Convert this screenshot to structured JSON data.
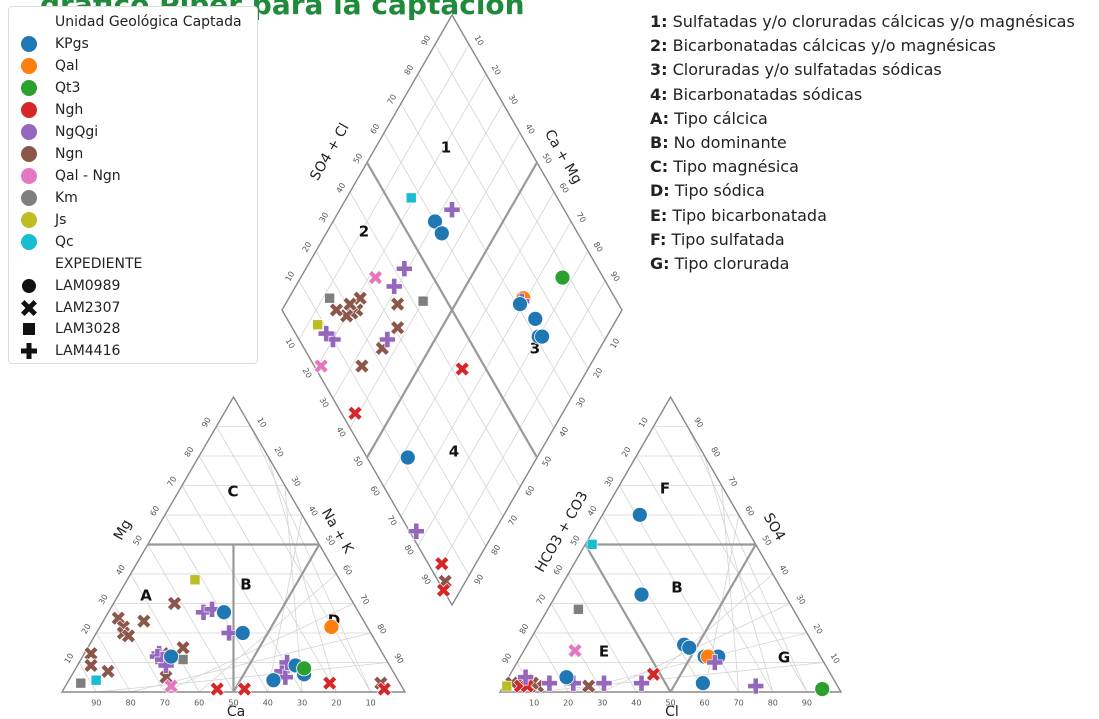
{
  "title_fragment": "gráfico Piper para la captación",
  "legend": {
    "unit_title": "Unidad Geológica Captada",
    "units": [
      {
        "label": "KPgs",
        "color": "#1f77b4"
      },
      {
        "label": "Qal",
        "color": "#ff7f0e"
      },
      {
        "label": "Qt3",
        "color": "#2ca02c"
      },
      {
        "label": "Ngh",
        "color": "#d62728"
      },
      {
        "label": "NgQgi",
        "color": "#9467bd"
      },
      {
        "label": "Ngn",
        "color": "#8c564b"
      },
      {
        "label": "Qal - Ngn",
        "color": "#e377c2"
      },
      {
        "label": "Km",
        "color": "#7f7f7f"
      },
      {
        "label": "Js",
        "color": "#bcbd22"
      },
      {
        "label": "Qc",
        "color": "#17becf"
      }
    ],
    "exp_title": "EXPEDIENTE",
    "expedientes": [
      {
        "label": "LAM0989",
        "marker": "circle"
      },
      {
        "label": "LAM2307",
        "marker": "x"
      },
      {
        "label": "LAM3028",
        "marker": "square"
      },
      {
        "label": "LAM4416",
        "marker": "plus"
      }
    ]
  },
  "key": [
    {
      "code": "1:",
      "text": "Sulfatadas y/o cloruradas cálcicas y/o magnésicas"
    },
    {
      "code": "2:",
      "text": "Bicarbonatadas cálcicas y/o magnésicas"
    },
    {
      "code": "3:",
      "text": "Cloruradas y/o sulfatadas sódicas"
    },
    {
      "code": "4:",
      "text": "Bicarbonatadas sódicas"
    },
    {
      "code": "A:",
      "text": "Tipo cálcica"
    },
    {
      "code": "B:",
      "text": "No dominante"
    },
    {
      "code": "C:",
      "text": "Tipo magnésica"
    },
    {
      "code": "D:",
      "text": "Tipo sódica"
    },
    {
      "code": "E:",
      "text": "Tipo bicarbonatada"
    },
    {
      "code": "F:",
      "text": "Tipo sulfatada"
    },
    {
      "code": "G:",
      "text": "Tipo clorurada"
    }
  ],
  "chart_data": [
    {
      "type": "scatter",
      "name": "cation-triangle",
      "axis_labels": [
        "Mg",
        "Na + K",
        "Ca"
      ],
      "tick_labels": [
        "10",
        "20",
        "30",
        "40",
        "50",
        "60",
        "70",
        "80",
        "90"
      ],
      "region_labels": [
        "A",
        "B",
        "C",
        "D"
      ],
      "points": [
        {
          "unit": "Km",
          "marker": "square",
          "a": 3,
          "b": 4
        },
        {
          "unit": "Qc",
          "marker": "square",
          "a": 4,
          "b": 8
        },
        {
          "unit": "Ngn",
          "marker": "x",
          "a": 13,
          "b": 2
        },
        {
          "unit": "Ngn",
          "marker": "x",
          "a": 9,
          "b": 4
        },
        {
          "unit": "Ngn",
          "marker": "x",
          "a": 7,
          "b": 10
        },
        {
          "unit": "Ngn",
          "marker": "x",
          "a": 25,
          "b": 4
        },
        {
          "unit": "Ngn",
          "marker": "x",
          "a": 22,
          "b": 7
        },
        {
          "unit": "Ngn",
          "marker": "x",
          "a": 20,
          "b": 8
        },
        {
          "unit": "Ngn",
          "marker": "x",
          "a": 19,
          "b": 10
        },
        {
          "unit": "Ngn",
          "marker": "x",
          "a": 24,
          "b": 12
        },
        {
          "unit": "Ngn",
          "marker": "x",
          "a": 13,
          "b": 23
        },
        {
          "unit": "Ngn",
          "marker": "x",
          "a": 30,
          "b": 18
        },
        {
          "unit": "Ngn",
          "marker": "x",
          "a": 15,
          "b": 28
        },
        {
          "unit": "Ngn",
          "marker": "x",
          "a": 5,
          "b": 28
        },
        {
          "unit": "Ngn",
          "marker": "x",
          "a": 3,
          "b": 92
        },
        {
          "unit": "Js",
          "marker": "square",
          "a": 38,
          "b": 20
        },
        {
          "unit": "NgQgi",
          "marker": "plus",
          "a": 13,
          "b": 22
        },
        {
          "unit": "NgQgi",
          "marker": "plus",
          "a": 12,
          "b": 22
        },
        {
          "unit": "NgQgi",
          "marker": "plus",
          "a": 11,
          "b": 24
        },
        {
          "unit": "NgQgi",
          "marker": "plus",
          "a": 9,
          "b": 26
        },
        {
          "unit": "NgQgi",
          "marker": "plus",
          "a": 27,
          "b": 28
        },
        {
          "unit": "NgQgi",
          "marker": "plus",
          "a": 28,
          "b": 30
        },
        {
          "unit": "NgQgi",
          "marker": "plus",
          "a": 20,
          "b": 39
        },
        {
          "unit": "NgQgi",
          "marker": "plus",
          "a": 7,
          "b": 61
        },
        {
          "unit": "NgQgi",
          "marker": "plus",
          "a": 5,
          "b": 63
        },
        {
          "unit": "NgQgi",
          "marker": "plus",
          "a": 10,
          "b": 61
        },
        {
          "unit": "Km",
          "marker": "square",
          "a": 11,
          "b": 30
        },
        {
          "unit": "KPgs",
          "marker": "circle",
          "a": 12,
          "b": 26
        },
        {
          "unit": "KPgs",
          "marker": "circle",
          "a": 27,
          "b": 34
        },
        {
          "unit": "KPgs",
          "marker": "circle",
          "a": 20,
          "b": 43
        },
        {
          "unit": "KPgs",
          "marker": "circle",
          "a": 9,
          "b": 64
        },
        {
          "unit": "KPgs",
          "marker": "circle",
          "a": 6,
          "b": 68
        },
        {
          "unit": "KPgs",
          "marker": "circle",
          "a": 4,
          "b": 60
        },
        {
          "unit": "Qal",
          "marker": "circle",
          "a": 22,
          "b": 68
        },
        {
          "unit": "Qt3",
          "marker": "circle",
          "a": 8,
          "b": 67
        },
        {
          "unit": "Ngh",
          "marker": "x",
          "a": 3,
          "b": 77
        },
        {
          "unit": "Ngh",
          "marker": "x",
          "a": 1,
          "b": 45
        },
        {
          "unit": "Ngh",
          "marker": "x",
          "a": 1,
          "b": 53
        },
        {
          "unit": "Ngh",
          "marker": "x",
          "a": 1,
          "b": 94
        },
        {
          "unit": "Qal - Ngn",
          "marker": "x",
          "a": 2,
          "b": 31
        }
      ]
    },
    {
      "type": "scatter",
      "name": "anion-triangle",
      "axis_labels": [
        "HCO3 + CO3",
        "SO4",
        "Cl"
      ],
      "tick_labels": [
        "10",
        "20",
        "30",
        "40",
        "50",
        "60",
        "70",
        "80",
        "90"
      ],
      "region_labels": [
        "E",
        "F",
        "G",
        "B"
      ],
      "points": [
        {
          "unit": "Qc",
          "marker": "square",
          "a": 50,
          "b": 2
        },
        {
          "unit": "KPgs",
          "marker": "circle",
          "a": 60,
          "b": 11
        },
        {
          "unit": "KPgs",
          "marker": "circle",
          "a": 33,
          "b": 25
        },
        {
          "unit": "Km",
          "marker": "square",
          "a": 28,
          "b": 9
        },
        {
          "unit": "KPgs",
          "marker": "circle",
          "a": 16,
          "b": 46
        },
        {
          "unit": "KPgs",
          "marker": "circle",
          "a": 15,
          "b": 48
        },
        {
          "unit": "KPgs",
          "marker": "circle",
          "a": 12,
          "b": 54
        },
        {
          "unit": "KPgs",
          "marker": "circle",
          "a": 12,
          "b": 58
        },
        {
          "unit": "KPgs",
          "marker": "circle",
          "a": 3,
          "b": 58
        },
        {
          "unit": "Qal",
          "marker": "circle",
          "a": 12,
          "b": 55
        },
        {
          "unit": "Qt3",
          "marker": "circle",
          "a": 1,
          "b": 94
        },
        {
          "unit": "NgQgi",
          "marker": "plus",
          "a": 10,
          "b": 58
        },
        {
          "unit": "NgQgi",
          "marker": "plus",
          "a": 2,
          "b": 74
        },
        {
          "unit": "Qal - Ngn",
          "marker": "x",
          "a": 14,
          "b": 15
        },
        {
          "unit": "Ngh",
          "marker": "x",
          "a": 6,
          "b": 42
        },
        {
          "unit": "Ngn",
          "marker": "x",
          "a": 2,
          "b": 25
        },
        {
          "unit": "Ngn",
          "marker": "x",
          "a": 2,
          "b": 10
        },
        {
          "unit": "NgQgi",
          "marker": "plus",
          "a": 3,
          "b": 13
        },
        {
          "unit": "NgQgi",
          "marker": "plus",
          "a": 3,
          "b": 20
        },
        {
          "unit": "NgQgi",
          "marker": "plus",
          "a": 3,
          "b": 29
        },
        {
          "unit": "NgQgi",
          "marker": "plus",
          "a": 3,
          "b": 40
        },
        {
          "unit": "Ngn",
          "marker": "x",
          "a": 4,
          "b": 6
        },
        {
          "unit": "Ngn",
          "marker": "x",
          "a": 3,
          "b": 8
        },
        {
          "unit": "Ngn",
          "marker": "x",
          "a": 3,
          "b": 4
        },
        {
          "unit": "Ngn",
          "marker": "x",
          "a": 3,
          "b": 2
        },
        {
          "unit": "Js",
          "marker": "square",
          "a": 2,
          "b": 1
        },
        {
          "unit": "KPgs",
          "marker": "circle",
          "a": 5,
          "b": 17
        },
        {
          "unit": "Ngh",
          "marker": "x",
          "a": 2,
          "b": 5
        },
        {
          "unit": "Ngh",
          "marker": "x",
          "a": 2,
          "b": 7
        },
        {
          "unit": "NgQgi",
          "marker": "plus",
          "a": 5,
          "b": 5
        }
      ]
    },
    {
      "type": "scatter",
      "name": "diamond",
      "axis_labels": [
        "SO4 + Cl",
        "Ca + Mg"
      ],
      "tick_labels": [
        "10",
        "20",
        "30",
        "40",
        "50",
        "60",
        "70",
        "80",
        "90"
      ],
      "region_labels": [
        "1",
        "2",
        "3",
        "4"
      ],
      "points": [
        {
          "unit": "Qc",
          "marker": "square",
          "s": 57,
          "c": 81
        },
        {
          "unit": "KPgs",
          "marker": "circle",
          "s": 60,
          "c": 70
        },
        {
          "unit": "KPgs",
          "marker": "circle",
          "s": 60,
          "c": 66
        },
        {
          "unit": "NgQgi",
          "marker": "plus",
          "s": 67,
          "c": 67
        },
        {
          "unit": "NgQgi",
          "marker": "plus",
          "s": 43,
          "c": 71
        },
        {
          "unit": "NgQgi",
          "marker": "plus",
          "s": 37,
          "c": 71
        },
        {
          "unit": "Qal - Ngn",
          "marker": "x",
          "s": 33,
          "c": 78
        },
        {
          "unit": "Km",
          "marker": "square",
          "s": 43,
          "c": 60
        },
        {
          "unit": "Ngn",
          "marker": "x",
          "s": 25,
          "c": 79
        },
        {
          "unit": "Ngn",
          "marker": "x",
          "s": 22,
          "c": 78
        },
        {
          "unit": "Ngn",
          "marker": "x",
          "s": 20,
          "c": 79
        },
        {
          "unit": "Ngn",
          "marker": "x",
          "s": 18,
          "c": 80
        },
        {
          "unit": "Ngn",
          "marker": "x",
          "s": 21,
          "c": 81
        },
        {
          "unit": "Ngn",
          "marker": "x",
          "s": 16,
          "c": 84
        },
        {
          "unit": "Ngn",
          "marker": "x",
          "s": 35,
          "c": 67
        },
        {
          "unit": "Ngn",
          "marker": "x",
          "s": 31,
          "c": 63
        },
        {
          "unit": "Ngn",
          "marker": "x",
          "s": 23,
          "c": 64
        },
        {
          "unit": "Ngn",
          "marker": "x",
          "s": 14,
          "c": 67
        },
        {
          "unit": "Km",
          "marker": "square",
          "s": 16,
          "c": 88
        },
        {
          "unit": "Js",
          "marker": "square",
          "s": 8,
          "c": 87
        },
        {
          "unit": "NgQgi",
          "marker": "plus",
          "s": 26,
          "c": 64
        },
        {
          "unit": "NgQgi",
          "marker": "plus",
          "s": 10,
          "c": 80
        },
        {
          "unit": "NgQgi",
          "marker": "plus",
          "s": 9,
          "c": 83
        },
        {
          "unit": "Qal - Ngn",
          "marker": "x",
          "s": 2,
          "c": 79
        },
        {
          "unit": "KPgs",
          "marker": "circle",
          "s": 12,
          "c": 38
        },
        {
          "unit": "Ngh",
          "marker": "x",
          "s": 4,
          "c": 61
        },
        {
          "unit": "Qal",
          "marker": "circle",
          "s": 73,
          "c": 31
        },
        {
          "unit": "NgQgi",
          "marker": "plus",
          "s": 72,
          "c": 31
        },
        {
          "unit": "KPgs",
          "marker": "circle",
          "s": 71,
          "c": 31
        },
        {
          "unit": "KPgs",
          "marker": "circle",
          "s": 73,
          "c": 24
        },
        {
          "unit": "KPgs",
          "marker": "circle",
          "s": 71,
          "c": 20
        },
        {
          "unit": "KPgs",
          "marker": "circle",
          "s": 72,
          "c": 19
        },
        {
          "unit": "Qt3",
          "marker": "circle",
          "s": 88,
          "c": 23
        },
        {
          "unit": "Ngh",
          "marker": "x",
          "s": 43,
          "c": 37
        },
        {
          "unit": "NgQgi",
          "marker": "plus",
          "s": 2,
          "c": 23
        },
        {
          "unit": "Ngh",
          "marker": "x",
          "s": 4,
          "c": 10
        },
        {
          "unit": "Ngn",
          "marker": "x",
          "s": 2,
          "c": 6
        },
        {
          "unit": "Ngh",
          "marker": "x",
          "s": 0,
          "c": 5
        }
      ]
    }
  ]
}
